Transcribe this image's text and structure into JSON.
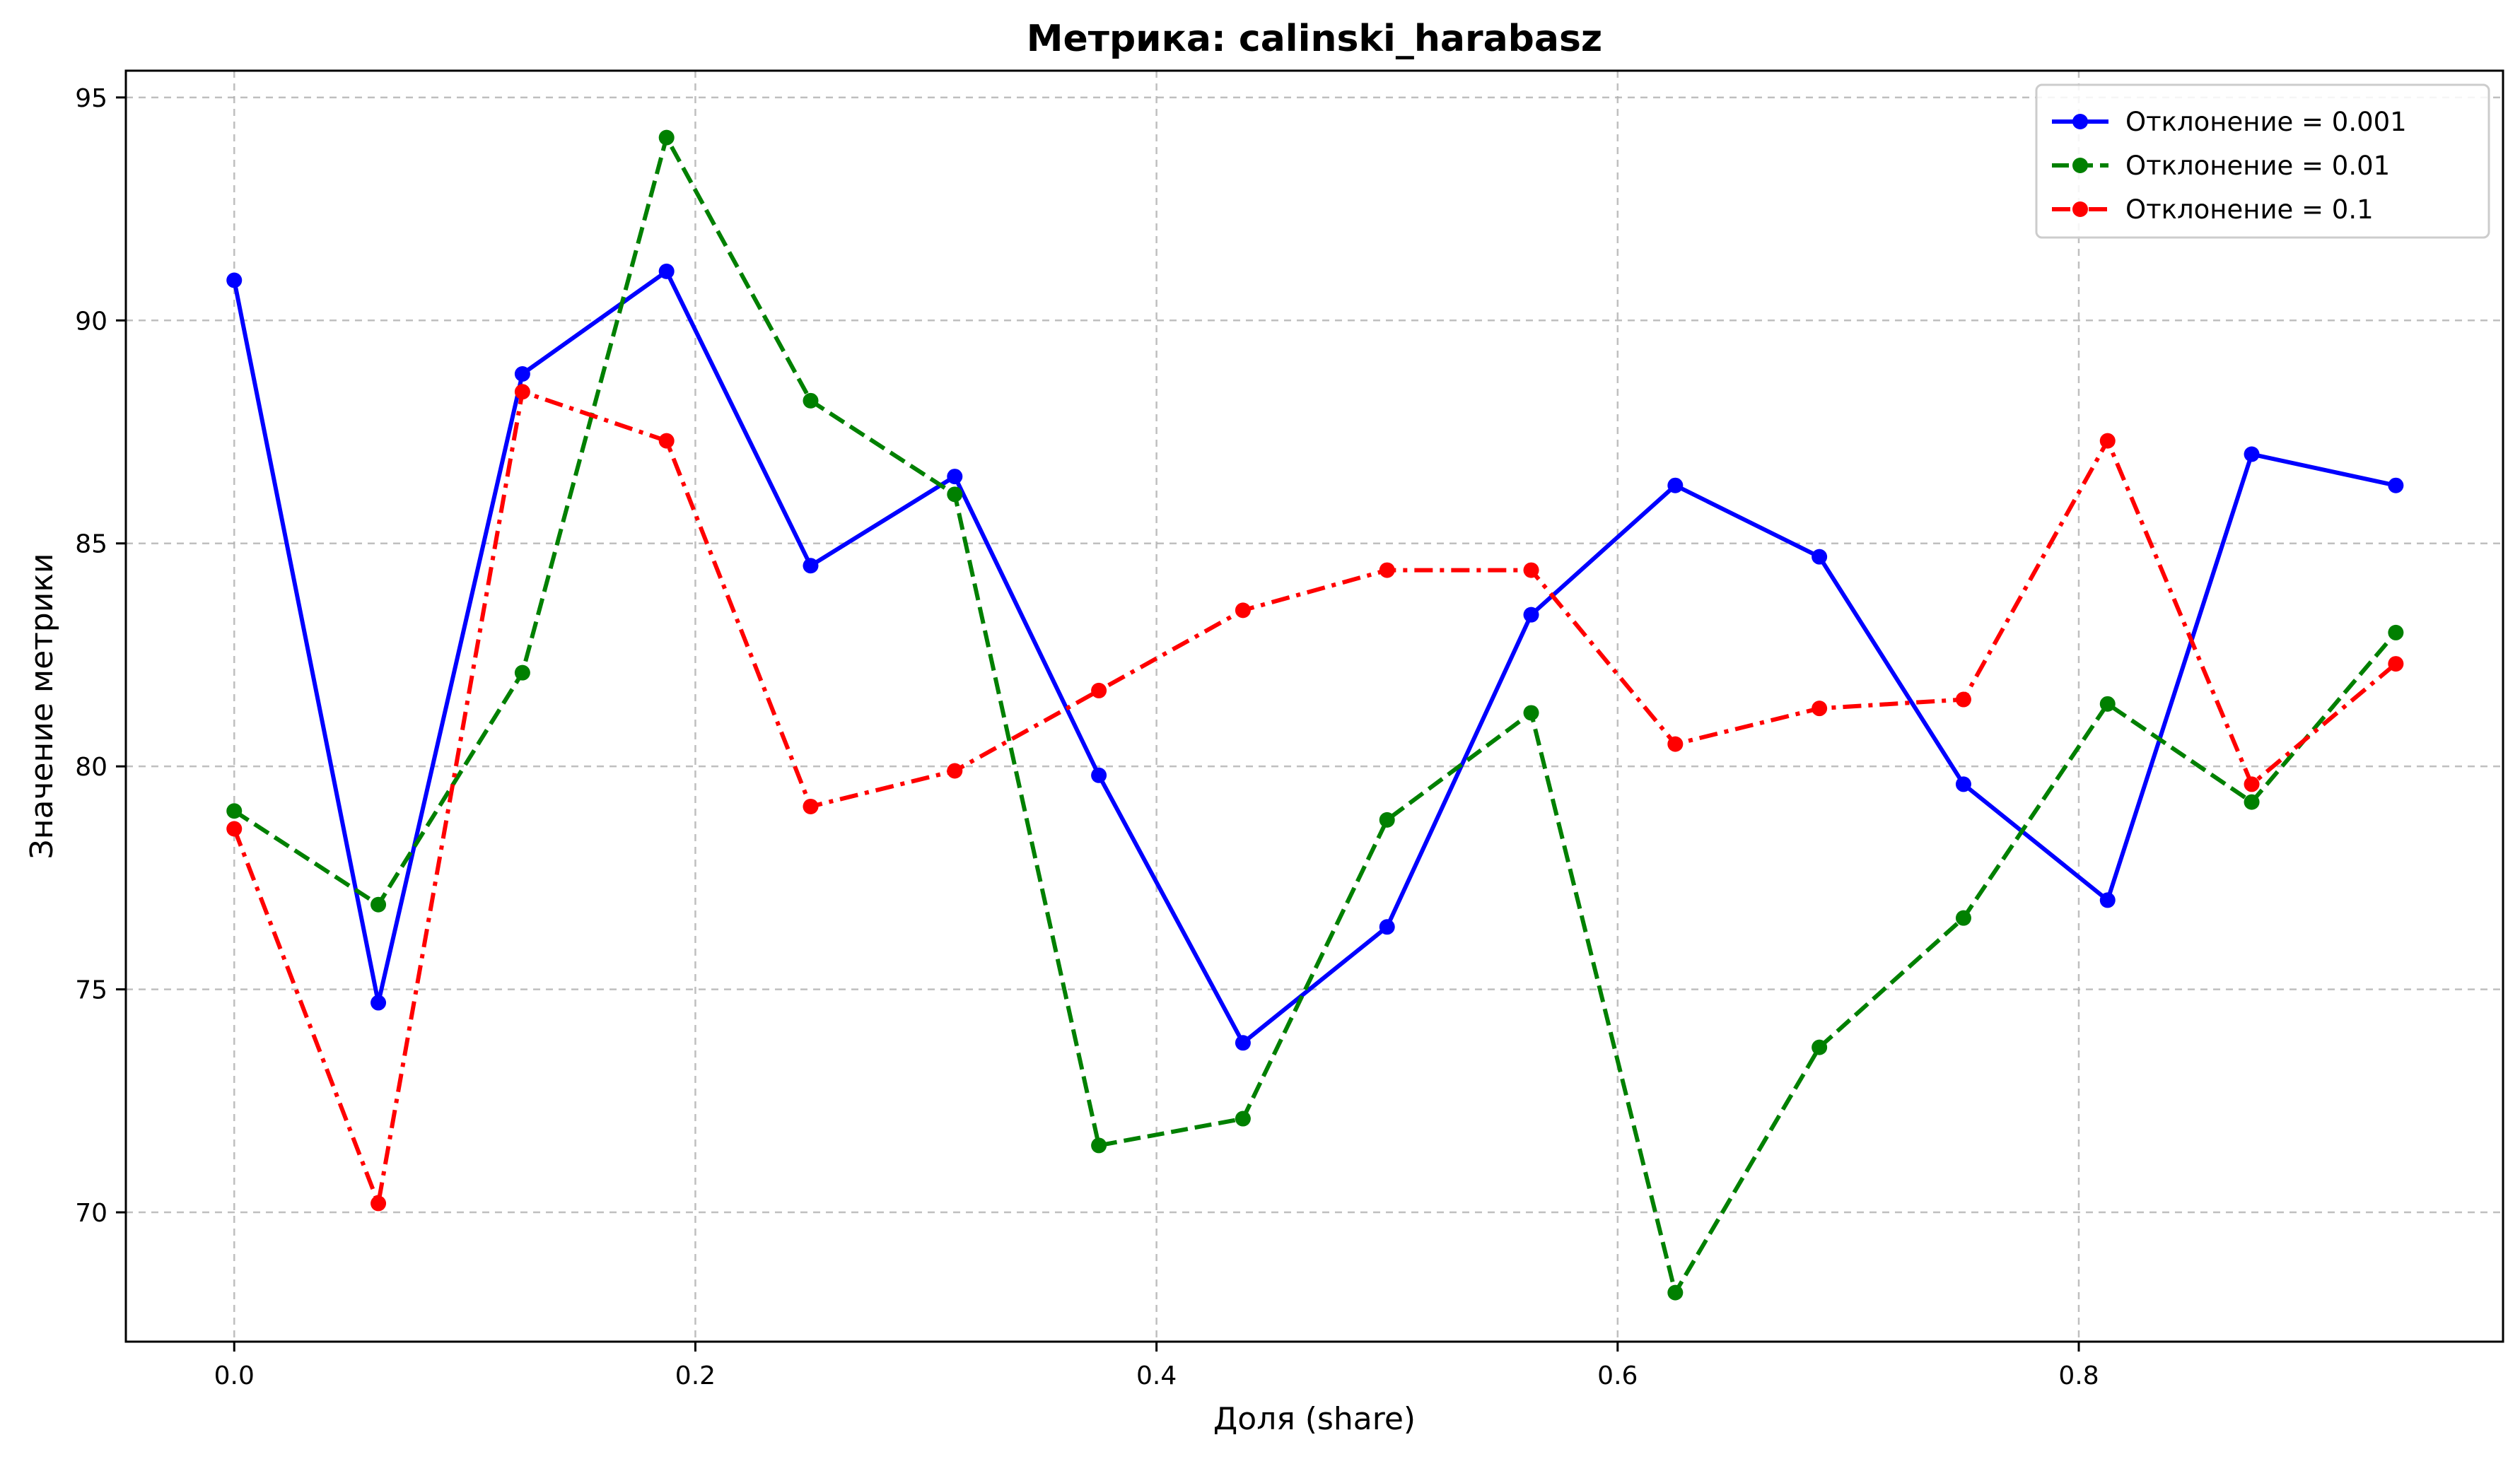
{
  "chart_data": {
    "type": "line",
    "title": "Метрика: calinski_harabasz",
    "xlabel": "Доля (share)",
    "ylabel": "Значение метрики",
    "xlim": [
      -0.047,
      0.984
    ],
    "ylim": [
      67.1,
      95.6
    ],
    "xticks": [
      0.0,
      0.2,
      0.4,
      0.6,
      0.8
    ],
    "xtick_labels": [
      "0.0",
      "0.2",
      "0.4",
      "0.6",
      "0.8"
    ],
    "yticks": [
      70,
      75,
      80,
      85,
      90,
      95
    ],
    "ytick_labels": [
      "70",
      "75",
      "80",
      "85",
      "90",
      "95"
    ],
    "grid": true,
    "legend_position": "top-right",
    "x": [
      0.0,
      0.0625,
      0.125,
      0.1875,
      0.25,
      0.3125,
      0.375,
      0.4375,
      0.5,
      0.5625,
      0.625,
      0.6875,
      0.75,
      0.8125,
      0.875,
      0.9375
    ],
    "series": [
      {
        "name": "Отклонение = 0.001",
        "color": "#0000ff",
        "style": "solid",
        "values": [
          90.9,
          74.7,
          88.8,
          91.1,
          84.5,
          86.5,
          79.8,
          73.8,
          76.4,
          83.4,
          86.3,
          84.7,
          79.6,
          77.0,
          87.0,
          86.3
        ]
      },
      {
        "name": "Отклонение = 0.01",
        "color": "#008000",
        "style": "dashed",
        "values": [
          79.0,
          76.9,
          82.1,
          94.1,
          88.2,
          86.1,
          71.5,
          72.1,
          78.8,
          81.2,
          68.2,
          73.7,
          76.6,
          81.4,
          79.2,
          83.0
        ]
      },
      {
        "name": "Отклонение = 0.1",
        "color": "#ff0000",
        "style": "dashdot",
        "values": [
          78.6,
          70.2,
          88.4,
          87.3,
          79.1,
          79.9,
          81.7,
          83.5,
          84.4,
          84.4,
          80.5,
          81.3,
          81.5,
          87.3,
          79.6,
          82.3
        ]
      }
    ]
  }
}
